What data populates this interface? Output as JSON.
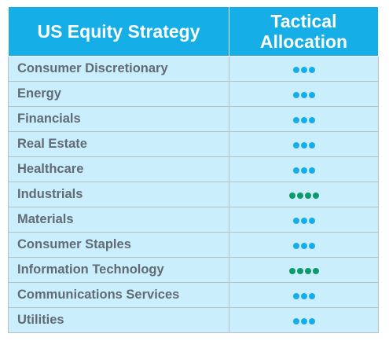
{
  "header": {
    "strategy_label": "US Equity Strategy",
    "allocation_line1": "Tactical",
    "allocation_line2": "Allocation"
  },
  "colors": {
    "header_bg": "#15aee6",
    "row_bg": "#caeefb",
    "text": "#606b75",
    "dot_neutral": "#15aee6",
    "dot_overweight": "#0f9a6e"
  },
  "rows": [
    {
      "sector": "Consumer Discretionary",
      "dots": 3,
      "dot_color": "neutral"
    },
    {
      "sector": "Energy",
      "dots": 3,
      "dot_color": "neutral"
    },
    {
      "sector": "Financials",
      "dots": 3,
      "dot_color": "neutral"
    },
    {
      "sector": "Real Estate",
      "dots": 3,
      "dot_color": "neutral"
    },
    {
      "sector": "Healthcare",
      "dots": 3,
      "dot_color": "neutral"
    },
    {
      "sector": "Industrials",
      "dots": 4,
      "dot_color": "overweight"
    },
    {
      "sector": "Materials",
      "dots": 3,
      "dot_color": "neutral"
    },
    {
      "sector": "Consumer Staples",
      "dots": 3,
      "dot_color": "neutral"
    },
    {
      "sector": "Information Technology",
      "dots": 4,
      "dot_color": "overweight"
    },
    {
      "sector": "Communications Services",
      "dots": 3,
      "dot_color": "neutral"
    },
    {
      "sector": "Utilities",
      "dots": 3,
      "dot_color": "neutral"
    }
  ]
}
